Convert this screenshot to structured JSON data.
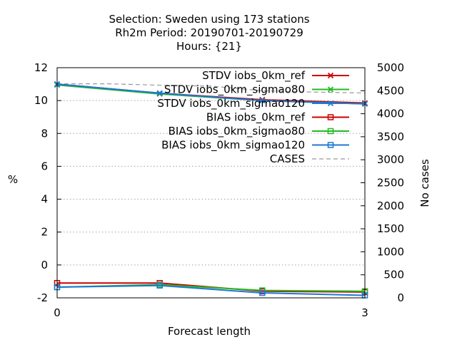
{
  "chart_data": {
    "type": "line",
    "title": [
      "Selection: Sweden using   173 stations",
      "Rh2m   Period: 20190701-20190729",
      "Hours: {21}"
    ],
    "xlabel": "Forecast length",
    "ylabel": "%",
    "y2label": "No cases",
    "xlim": [
      0,
      3
    ],
    "ylim": [
      -2,
      12
    ],
    "y2lim": [
      0,
      5000
    ],
    "xticks": [
      "0",
      "3"
    ],
    "yticks": [
      "-2",
      "0",
      "2",
      "4",
      "6",
      "8",
      "10",
      "12"
    ],
    "y2ticks": [
      "0",
      "500",
      "1000",
      "1500",
      "2000",
      "2500",
      "3000",
      "3500",
      "4000",
      "4500",
      "5000"
    ],
    "grid": true,
    "legend_position": "top-right",
    "series": [
      {
        "name": "STDV iobs_0km_ref",
        "axis": "y",
        "color": "#cc0000",
        "marker": "x",
        "x": [
          0,
          1,
          2,
          3
        ],
        "values": [
          11.0,
          10.45,
          10.05,
          9.85
        ]
      },
      {
        "name": "STDV iobs_0km_sigmao80",
        "axis": "y",
        "color": "#22bb22",
        "marker": "x",
        "x": [
          0,
          1,
          2,
          3
        ],
        "values": [
          10.95,
          10.4,
          10.0,
          9.8
        ]
      },
      {
        "name": "STDV iobs_0km_sigmao120",
        "axis": "y",
        "color": "#1f77d4",
        "marker": "x",
        "x": [
          0,
          1,
          2,
          3
        ],
        "values": [
          11.0,
          10.45,
          10.0,
          9.8
        ]
      },
      {
        "name": "BIAS iobs_0km_ref",
        "axis": "y",
        "color": "#cc0000",
        "marker": "square",
        "x": [
          0,
          1,
          2,
          3
        ],
        "values": [
          -1.1,
          -1.1,
          -1.6,
          -1.65
        ]
      },
      {
        "name": "BIAS iobs_0km_sigmao80",
        "axis": "y",
        "color": "#22bb22",
        "marker": "square",
        "x": [
          0,
          1,
          2,
          3
        ],
        "values": [
          -1.35,
          -1.2,
          -1.55,
          -1.6
        ]
      },
      {
        "name": "BIAS iobs_0km_sigmao120",
        "axis": "y",
        "color": "#1f77d4",
        "marker": "square",
        "x": [
          0,
          1,
          2,
          3
        ],
        "values": [
          -1.35,
          -1.25,
          -1.7,
          -1.85
        ]
      },
      {
        "name": "CASES",
        "axis": "y2",
        "color": "#999999",
        "marker": "none",
        "dashed": true,
        "x": [
          0,
          0.5,
          1,
          1.5,
          2,
          2.5,
          3
        ],
        "values": [
          4650,
          4650,
          4620,
          4600,
          4500,
          4470,
          4450
        ]
      }
    ]
  }
}
